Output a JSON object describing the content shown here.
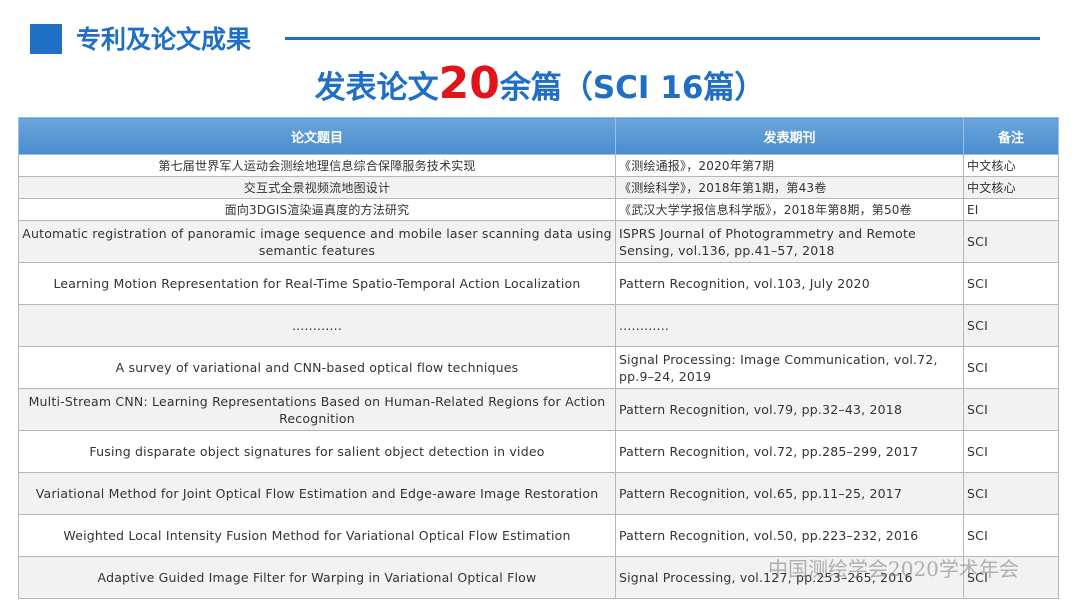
{
  "header": {
    "section": "专利及论文成果",
    "title": {
      "prefix": "发表论文",
      "number": "20",
      "suffix": "余篇（SCI 16篇）"
    }
  },
  "table": {
    "columns": [
      "论文题目",
      "发表期刊",
      "备注"
    ],
    "rows": [
      [
        "第七届世界军人运动会测绘地理信息综合保障服务技术实现",
        "《测绘通报》，2020年第7期",
        "中文核心"
      ],
      [
        "交互式全景视频流地图设计",
        "《测绘科学》，2018年第1期，第43卷",
        "中文核心"
      ],
      [
        "面向3DGIS渲染逼真度的方法研究",
        "《武汉大学学报信息科学版》，2018年第8期，第50卷",
        "EI"
      ],
      [
        "Automatic registration of panoramic image sequence and mobile laser scanning data using semantic features",
        "ISPRS Journal of Photogrammetry and Remote Sensing, vol.136, pp.41–57, 2018",
        "SCI"
      ],
      [
        "Learning Motion Representation for Real-Time Spatio-Temporal Action Localization",
        "Pattern Recognition, vol.103, July 2020",
        "SCI"
      ],
      [
        "............",
        "............",
        "SCI"
      ],
      [
        "A survey of variational and CNN-based optical flow techniques",
        "Signal Processing: Image Communication, vol.72, pp.9–24, 2019",
        "SCI"
      ],
      [
        "Multi-Stream CNN: Learning Representations Based on Human-Related Regions for Action Recognition",
        "Pattern Recognition, vol.79, pp.32–43, 2018",
        "SCI"
      ],
      [
        "Fusing disparate object signatures for salient object detection in video",
        "Pattern Recognition, vol.72, pp.285–299, 2017",
        "SCI"
      ],
      [
        "Variational Method for Joint Optical Flow Estimation and Edge-aware Image Restoration",
        "Pattern Recognition, vol.65, pp.11–25, 2017",
        "SCI"
      ],
      [
        "Weighted Local Intensity Fusion Method for Variational Optical Flow Estimation",
        "Pattern Recognition, vol.50, pp.223–232, 2016",
        "SCI"
      ],
      [
        "Adaptive Guided Image Filter for Warping in Variational Optical Flow",
        "Signal Processing, vol.127, pp.253–265, 2016",
        "SCI"
      ]
    ]
  },
  "watermark": "中国测绘学会2020学术年会"
}
